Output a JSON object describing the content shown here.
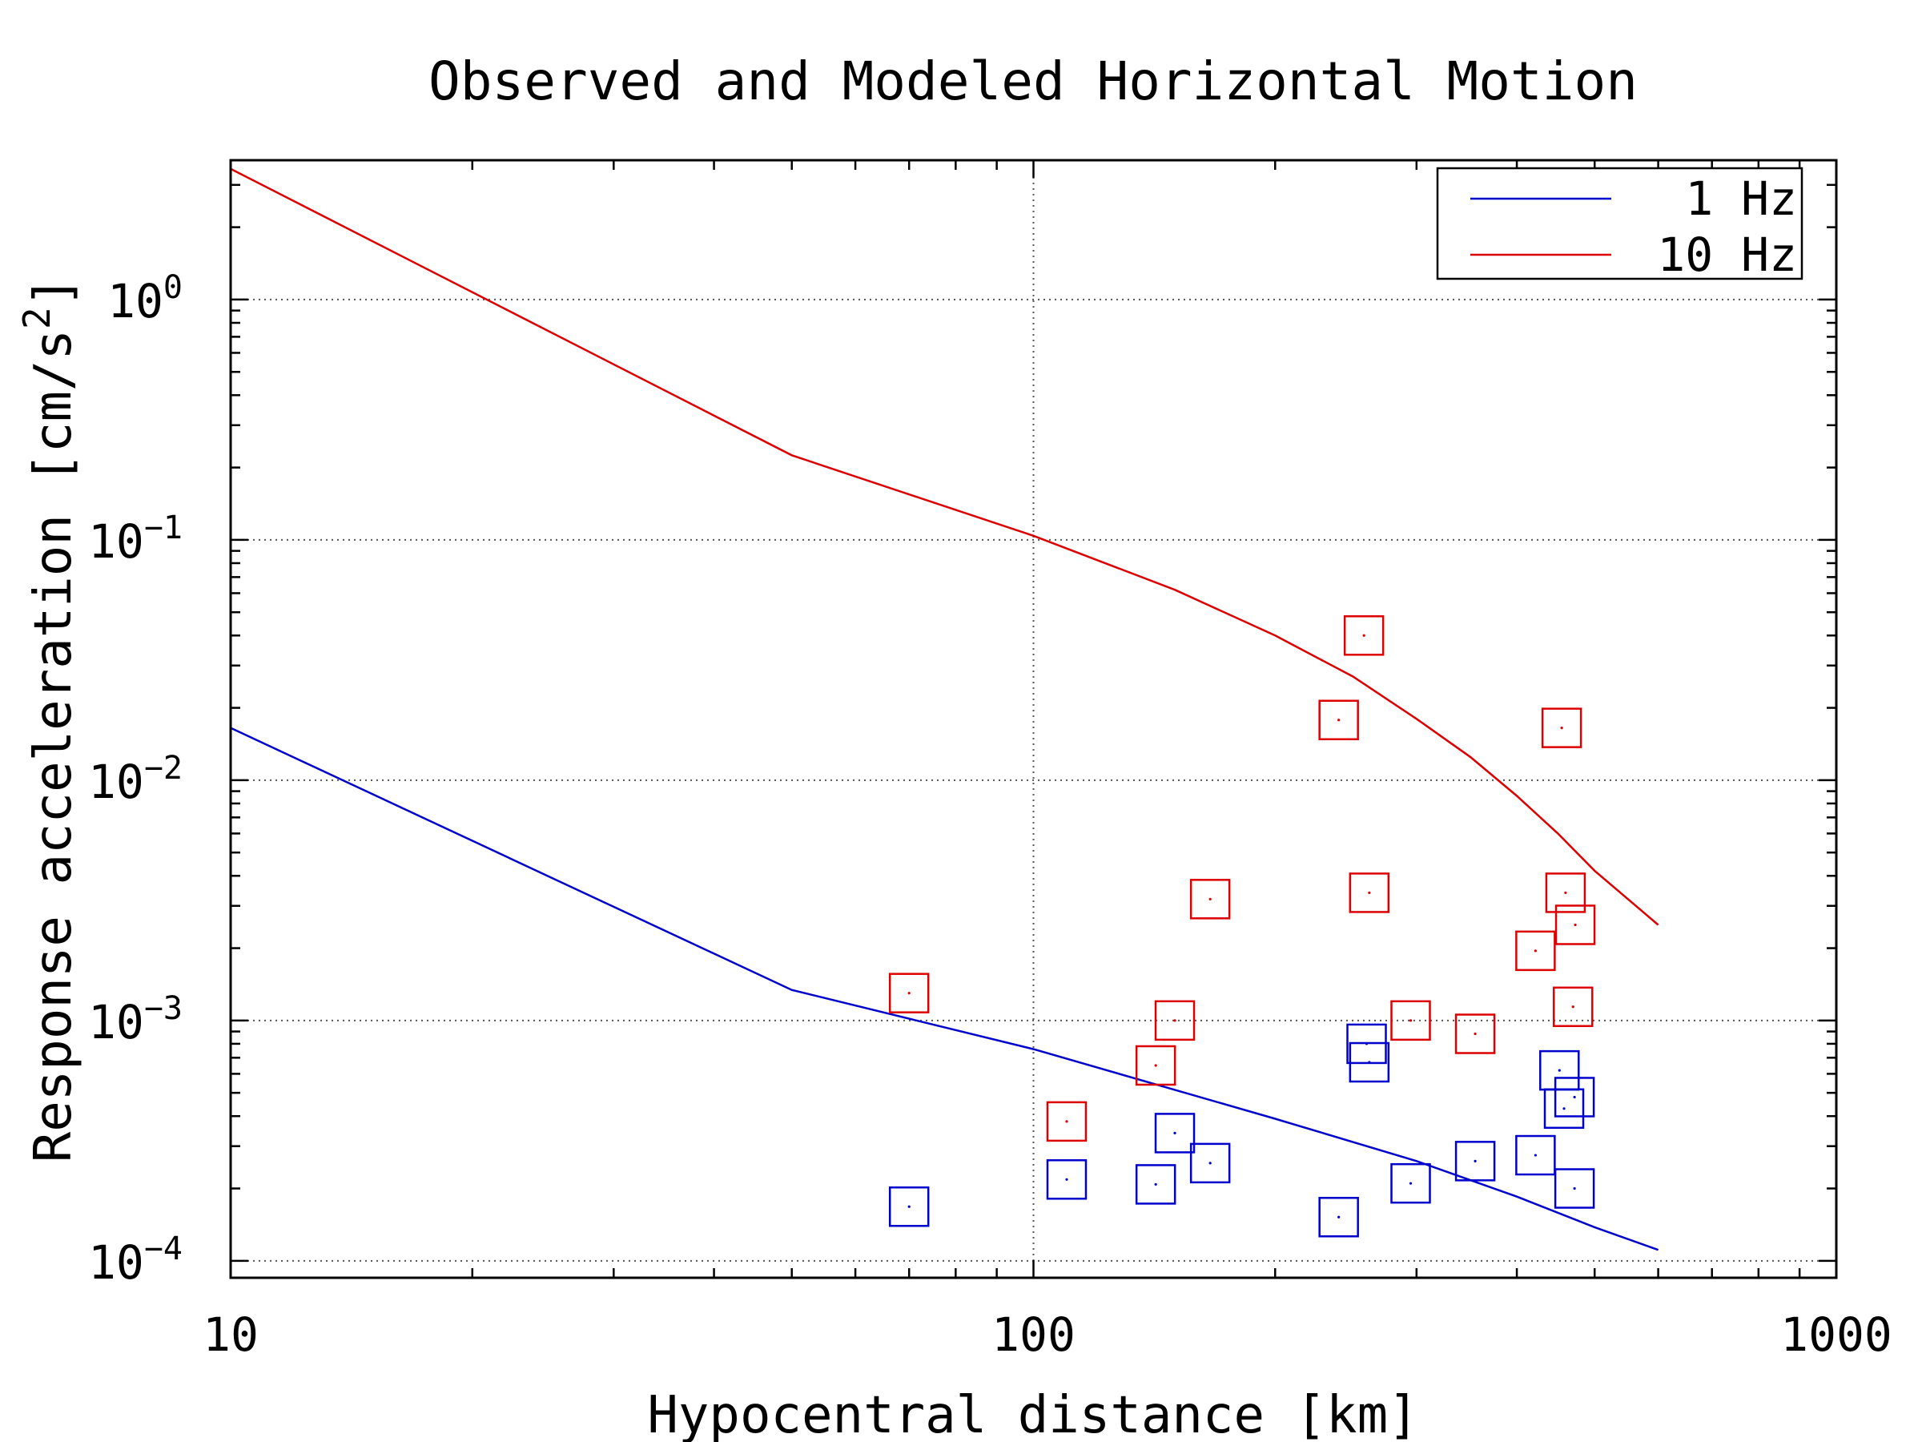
{
  "chart_data": {
    "type": "scatter",
    "title": "Observed and Modeled Horizontal Motion",
    "xlabel": "Hypocentral distance [km]",
    "ylabel": "Response acceleration [cm/s",
    "ylabel_sup": "2",
    "ylabel_end": "]",
    "x_scale": "log",
    "y_scale": "log",
    "xlim": [
      10,
      1000
    ],
    "ylim": [
      8.5e-05,
      3.8
    ],
    "grid": true,
    "legend_position": "top-right",
    "x_tick_labels": [
      {
        "value": 10,
        "label": "10"
      },
      {
        "value": 100,
        "label": "100"
      },
      {
        "value": 1000,
        "label": "1000"
      }
    ],
    "y_tick_labels": [
      {
        "value": 1,
        "base": "10",
        "exp": "0"
      },
      {
        "value": 0.1,
        "base": "10",
        "exp": "−1"
      },
      {
        "value": 0.01,
        "base": "10",
        "exp": "−2"
      },
      {
        "value": 0.001,
        "base": "10",
        "exp": "−3"
      },
      {
        "value": 0.0001,
        "base": "10",
        "exp": "−4"
      }
    ],
    "series": [
      {
        "name": "1 Hz",
        "kind": "line",
        "color": "#0000cc",
        "x": [
          10,
          50,
          100,
          200,
          300,
          400,
          500,
          600
        ],
        "y": [
          0.0165,
          0.00134,
          0.00076,
          0.00039,
          0.00026,
          0.000185,
          0.000138,
          0.000111
        ]
      },
      {
        "name": "10 Hz",
        "kind": "line",
        "color": "#dd0000",
        "x": [
          10,
          50,
          100,
          150,
          200,
          250,
          300,
          350,
          400,
          450,
          500,
          600
        ],
        "y": [
          3.5,
          0.225,
          0.104,
          0.062,
          0.04,
          0.027,
          0.018,
          0.0125,
          0.0086,
          0.006,
          0.0042,
          0.0025
        ]
      },
      {
        "name": "",
        "kind": "markers",
        "color": "#dd0000",
        "x": [
          70,
          110,
          142,
          150,
          166,
          240,
          258,
          262,
          295,
          355,
          422,
          455,
          460,
          470,
          473
        ],
        "y": [
          0.0013,
          0.00038,
          0.00065,
          0.001,
          0.0032,
          0.0178,
          0.04,
          0.0034,
          0.001,
          0.00088,
          0.00195,
          0.0165,
          0.0034,
          0.00114,
          0.0025
        ]
      },
      {
        "name": "",
        "kind": "markers",
        "color": "#0000cc",
        "x": [
          70,
          110,
          142,
          150,
          166,
          240,
          260,
          262,
          295,
          355,
          422,
          452,
          458,
          472,
          472
        ],
        "y": [
          0.000168,
          0.000218,
          0.000208,
          0.00034,
          0.000255,
          0.000152,
          0.0008,
          0.00067,
          0.00021,
          0.00026,
          0.000275,
          0.00062,
          0.00043,
          0.00048,
          0.0002
        ]
      }
    ],
    "legend": [
      {
        "label": "1 Hz",
        "color": "#0000cc"
      },
      {
        "label": "10 Hz",
        "color": "#dd0000"
      }
    ]
  }
}
